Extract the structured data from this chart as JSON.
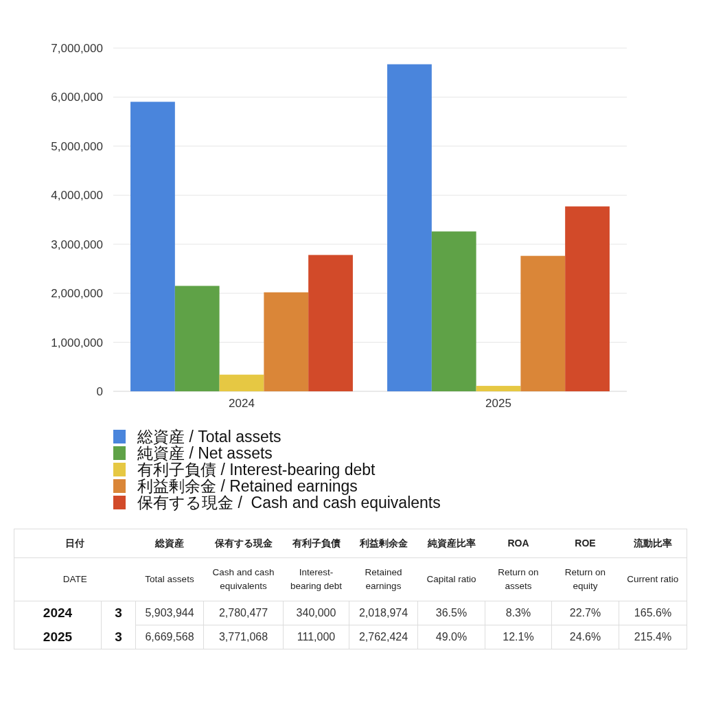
{
  "chart_data": [
    {
      "type": "bar",
      "categories": [
        "2024",
        "2025"
      ],
      "series": [
        {
          "name": "総資産 / Total assets",
          "color": "#4a85dc",
          "values": [
            5903944,
            6669568
          ]
        },
        {
          "name": "純資産 / Net assets",
          "color": "#5fa247",
          "values": [
            2150000,
            3260000
          ]
        },
        {
          "name": "有利子負債 / Interest-bearing debt",
          "color": "#e6c843",
          "values": [
            340000,
            111000
          ]
        },
        {
          "name": "利益剰余金 / Retained earnings",
          "color": "#da8638",
          "values": [
            2018974,
            2762424
          ]
        },
        {
          "name": "保有する現金 /  Cash and cash equivalents",
          "color": "#d24a29",
          "values": [
            2780477,
            3771068
          ]
        }
      ],
      "ylim": [
        0,
        7000000
      ],
      "yticks": [
        0,
        {
          "value": 1000000,
          "label": "1,000,000"
        },
        {
          "value": 2000000,
          "label": "2,000,000"
        },
        {
          "value": 3000000,
          "label": "3,000,000"
        },
        {
          "value": 4000000,
          "label": "4,000,000"
        },
        {
          "value": 5000000,
          "label": "5,000,000"
        },
        {
          "value": 6000000,
          "label": "6,000,000"
        },
        {
          "value": 7000000,
          "label": "7,000,000"
        }
      ],
      "grid": "y",
      "legend": "bottom"
    },
    {
      "type": "other",
      "y_categories": [
        "日付",
        "DATE",
        "2024",
        "2025"
      ],
      "cell_labels": [
        [
          null,
          "総資産",
          "保有する現金",
          "有利子負債",
          "利益剰余金",
          "純資産比率",
          "ROA",
          "ROE",
          "流動比率"
        ],
        [
          null,
          "Total assets",
          "Cash and cash equivalents",
          "Interest-bearing debt",
          "Retained earnings",
          "Capital ratio",
          "Return on assets",
          "Return on equity",
          "Current ratio"
        ],
        [
          "3",
          "5,903,944",
          "2,780,477",
          "340,000",
          "2,018,974",
          "36.5%",
          "8.3%",
          "22.7%",
          "165.6%"
        ],
        [
          "3",
          "6,669,568",
          "3,771,068",
          "111,000",
          "2,762,424",
          "49.0%",
          "12.1%",
          "24.6%",
          "215.4%"
        ]
      ]
    }
  ]
}
